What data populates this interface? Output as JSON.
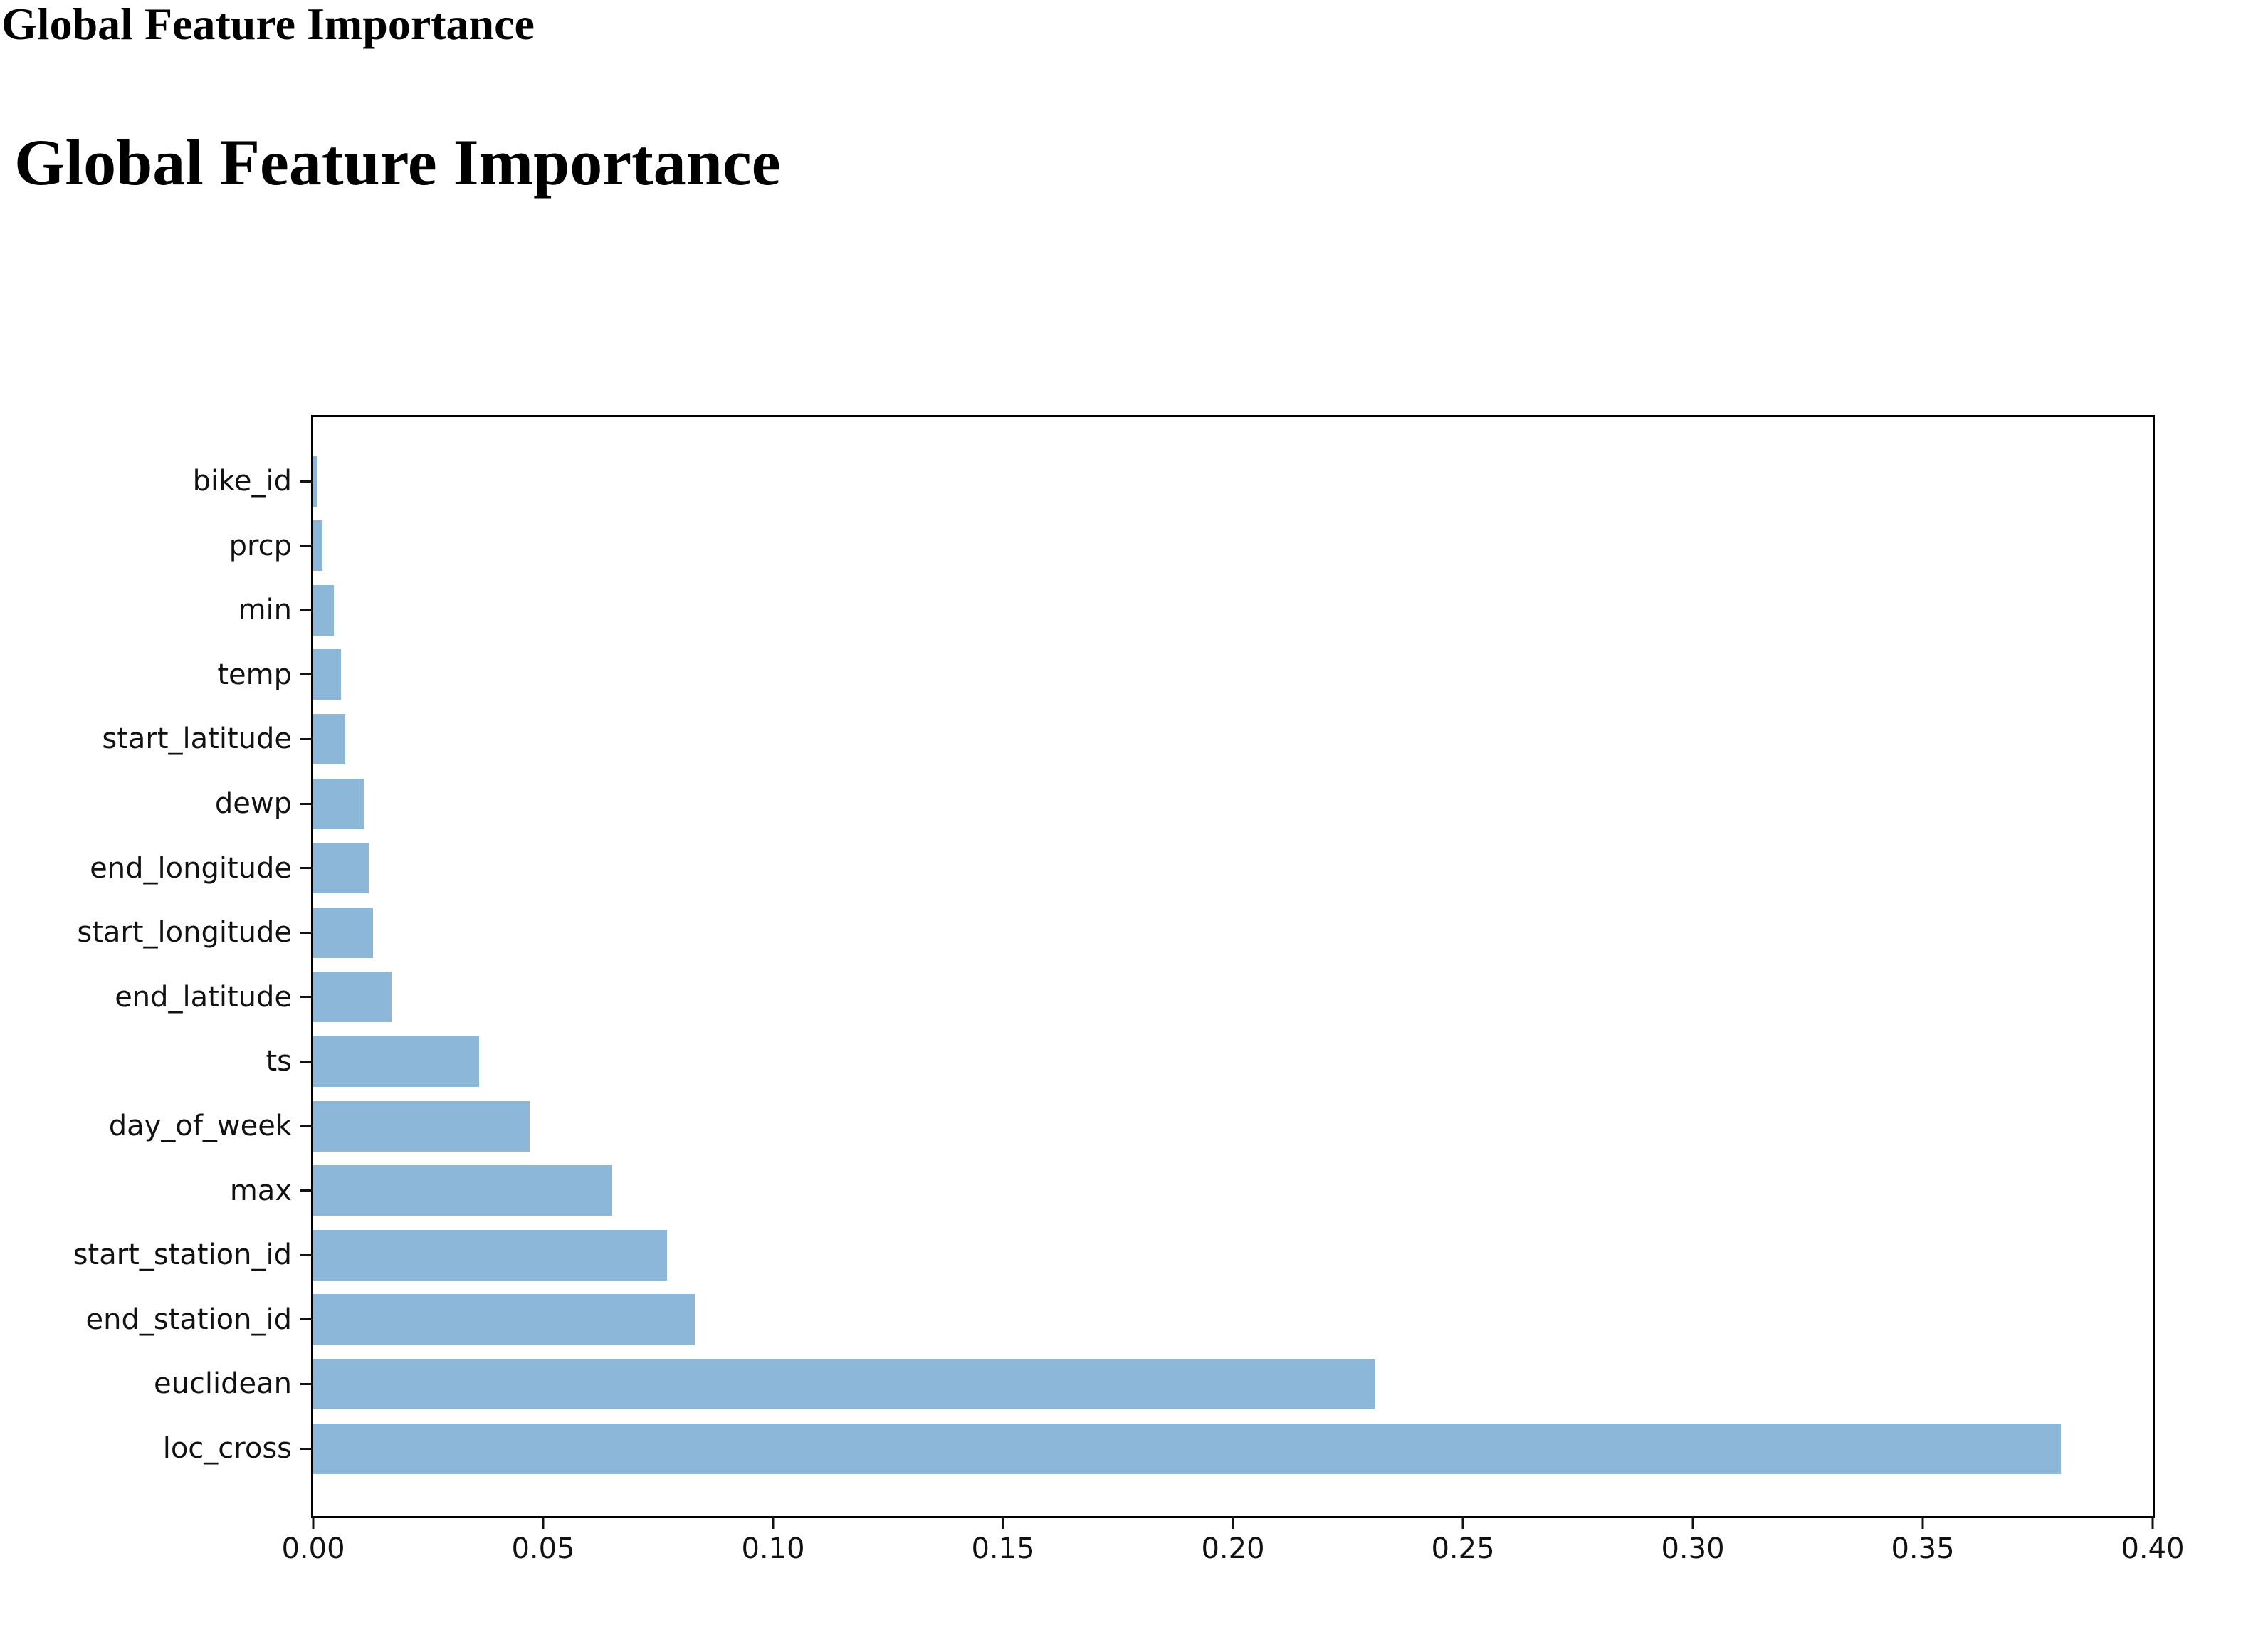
{
  "page": {
    "header_small": "Global Feature Importance",
    "title": "Global Feature Importance"
  },
  "chart_data": {
    "type": "bar",
    "orientation": "horizontal",
    "title": "Global Feature Importance",
    "categories": [
      "bike_id",
      "prcp",
      "min",
      "temp",
      "start_latitude",
      "dewp",
      "end_longitude",
      "start_longitude",
      "end_latitude",
      "ts",
      "day_of_week",
      "max",
      "start_station_id",
      "end_station_id",
      "euclidean",
      "loc_cross"
    ],
    "values": [
      0.001,
      0.002,
      0.0045,
      0.006,
      0.007,
      0.011,
      0.012,
      0.013,
      0.017,
      0.036,
      0.047,
      0.065,
      0.077,
      0.083,
      0.231,
      0.38
    ],
    "xlabel": "",
    "ylabel": "",
    "xlim": [
      0.0,
      0.4
    ],
    "xticks": [
      0.0,
      0.05,
      0.1,
      0.15,
      0.2,
      0.25,
      0.3,
      0.35,
      0.4
    ],
    "xtick_labels": [
      "0.00",
      "0.05",
      "0.10",
      "0.15",
      "0.20",
      "0.25",
      "0.30",
      "0.35",
      "0.40"
    ],
    "bar_color": "#8cb7d9",
    "grid": false,
    "legend_position": "none"
  }
}
